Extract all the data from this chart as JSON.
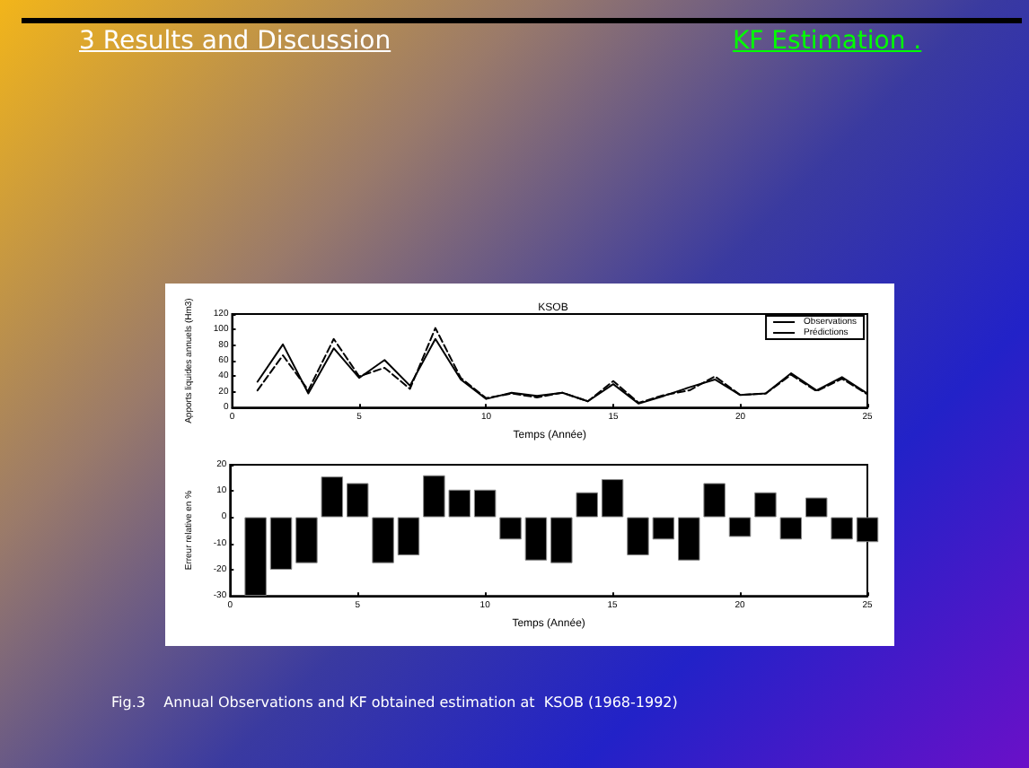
{
  "chart_data": [
    {
      "type": "line",
      "title": "KSOB",
      "xlabel": "Temps (Année)",
      "ylabel": "Apports liquides annuels (Hm3)",
      "annotations": [
        "3  Results  and Discussion",
        "KF Estimation .",
        "Fig.3    Annual Observations and KF obtained estimation at  KSOB (1968-1992)"
      ],
      "x": [
        1,
        2,
        3,
        4,
        5,
        6,
        7,
        8,
        9,
        10,
        11,
        12,
        13,
        14,
        15,
        16,
        17,
        18,
        19,
        20,
        21,
        22,
        23,
        24,
        25
      ],
      "series": [
        {
          "name": "Observations",
          "color": "#000000",
          "line_style": "solid",
          "values": [
            33,
            81,
            18,
            76,
            38,
            61,
            28,
            88,
            36,
            11,
            19,
            15,
            19,
            8,
            30,
            5,
            15,
            26,
            36,
            16,
            18,
            44,
            22,
            39,
            18
          ]
        },
        {
          "name": "Prédictions",
          "color": "#000000",
          "line_style": "dashed",
          "values": [
            22,
            67,
            22,
            88,
            40,
            51,
            24,
            102,
            38,
            12,
            18,
            13,
            19,
            8,
            34,
            6,
            16,
            22,
            40,
            16,
            18,
            42,
            21,
            37,
            17
          ]
        }
      ],
      "xlim": [
        0,
        25
      ],
      "xticks": [
        0,
        5,
        10,
        15,
        20,
        25
      ],
      "ylim": [
        0,
        120
      ],
      "yticks": [
        0,
        20,
        40,
        60,
        80,
        100,
        120
      ],
      "grid": false,
      "legend": "top right",
      "marker": "none"
    },
    {
      "type": "bar",
      "xlabel": "Temps (Année)",
      "ylabel": "Erreur relative en %",
      "x": [
        1,
        2,
        3,
        4,
        5,
        6,
        7,
        8,
        9,
        10,
        11,
        12,
        13,
        14,
        15,
        16,
        17,
        18,
        19,
        20,
        21,
        22,
        23,
        24,
        25
      ],
      "values": [
        -30,
        -20,
        -17.5,
        15.5,
        13,
        -17.5,
        -14.5,
        16,
        10.5,
        10.5,
        -8.5,
        -16.5,
        -17.5,
        9.5,
        14.5,
        -14.5,
        -8.5,
        -16.5,
        13,
        -7.5,
        9.5,
        -8.5,
        7.5,
        -8.5,
        -9.5
      ],
      "color": "#000000",
      "xlim": [
        0,
        25
      ],
      "xticks": [
        0,
        5,
        10,
        15,
        20,
        25
      ],
      "ylim": [
        -30,
        20
      ],
      "yticks": [
        -30,
        -20,
        -10,
        0,
        10,
        20
      ],
      "grid": false,
      "legend": false
    }
  ]
}
